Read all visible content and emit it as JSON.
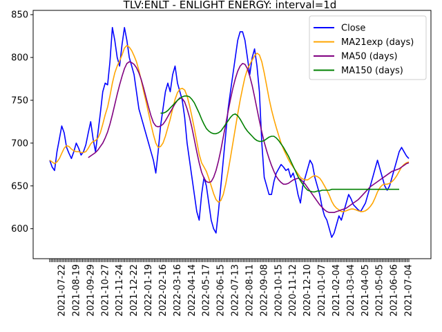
{
  "chart_data": {
    "type": "line",
    "title": "TLV:ENLT - ENLIGHT ENERGY: interval=1d",
    "xlabel": "",
    "ylabel": "",
    "ylim": [
      565,
      855
    ],
    "yticks": [
      600,
      650,
      700,
      750,
      800,
      850
    ],
    "grid": false,
    "legend_position": "top-right",
    "x_tick_labels": [
      "2021-07-22",
      "2021-08-19",
      "2021-09-29",
      "2021-10-27",
      "2021-11-24",
      "2021-12-22",
      "2022-01-19",
      "2022-02-16",
      "2022-03-16",
      "2022-04-14",
      "2022-05-17",
      "2022-06-15",
      "2022-07-13",
      "2022-08-11",
      "2022-09-08",
      "2020-10-15",
      "2020-11-12",
      "2020-12-10",
      "2021-01-07",
      "2021-02-04",
      "2021-03-04",
      "2021-04-05",
      "2021-05-05",
      "2021-06-06",
      "2021-07-04"
    ],
    "series": [
      {
        "name": "Close",
        "color": "#0000ff",
        "values": [
          680,
          672,
          668,
          690,
          705,
          720,
          712,
          695,
          688,
          682,
          690,
          700,
          694,
          686,
          690,
          698,
          712,
          725,
          705,
          690,
          712,
          735,
          760,
          770,
          768,
          795,
          835,
          820,
          800,
          790,
          815,
          835,
          820,
          800,
          790,
          780,
          760,
          740,
          730,
          720,
          710,
          700,
          690,
          680,
          665,
          690,
          720,
          740,
          760,
          770,
          760,
          780,
          790,
          770,
          760,
          750,
          730,
          700,
          680,
          660,
          640,
          620,
          610,
          640,
          660,
          650,
          630,
          610,
          600,
          595,
          620,
          650,
          680,
          710,
          740,
          760,
          780,
          800,
          820,
          830,
          830,
          820,
          800,
          780,
          800,
          810,
          790,
          760,
          700,
          660,
          650,
          640,
          640,
          655,
          665,
          670,
          675,
          672,
          668,
          670,
          660,
          665,
          655,
          640,
          630,
          650,
          660,
          670,
          680,
          675,
          660,
          650,
          640,
          625,
          615,
          610,
          600,
          590,
          595,
          605,
          615,
          610,
          620,
          630,
          640,
          635,
          628,
          625,
          622,
          620,
          625,
          630,
          640,
          650,
          660,
          670,
          680,
          670,
          660,
          650,
          645,
          650,
          660,
          670,
          680,
          690,
          695,
          690,
          685,
          682
        ]
      },
      {
        "name": "MA21exp (days)",
        "color": "#ffa500",
        "values": [
          680,
          678,
          676,
          678,
          682,
          688,
          694,
          697,
          696,
          693,
          691,
          690,
          690,
          689,
          689,
          690,
          694,
          699,
          702,
          703,
          706,
          712,
          722,
          733,
          742,
          755,
          770,
          782,
          790,
          796,
          803,
          811,
          814,
          812,
          808,
          802,
          795,
          785,
          773,
          760,
          748,
          735,
          722,
          710,
          700,
          695,
          696,
          700,
          708,
          718,
          728,
          740,
          751,
          759,
          763,
          764,
          762,
          755,
          744,
          731,
          717,
          702,
          687,
          677,
          672,
          667,
          659,
          650,
          641,
          634,
          631,
          633,
          640,
          652,
          667,
          683,
          700,
          717,
          734,
          750,
          764,
          777,
          786,
          792,
          797,
          802,
          805,
          803,
          795,
          782,
          767,
          752,
          739,
          728,
          718,
          709,
          700,
          693,
          687,
          681,
          676,
          672,
          668,
          664,
          660,
          658,
          657,
          657,
          659,
          661,
          662,
          661,
          659,
          655,
          650,
          645,
          639,
          632,
          627,
          624,
          622,
          620,
          620,
          621,
          622,
          623,
          623,
          622,
          621,
          620,
          620,
          621,
          623,
          626,
          630,
          636,
          643,
          648,
          651,
          652,
          652,
          653,
          655,
          658,
          662,
          667,
          672,
          675,
          677,
          678
        ]
      },
      {
        "name": "MA50 (days)",
        "color": "#800080",
        "values": [
          null,
          null,
          null,
          null,
          null,
          null,
          null,
          null,
          null,
          null,
          null,
          null,
          null,
          null,
          null,
          null,
          683,
          685,
          687,
          689,
          692,
          696,
          700,
          706,
          713,
          722,
          733,
          745,
          757,
          768,
          778,
          787,
          793,
          795,
          794,
          792,
          788,
          782,
          774,
          764,
          753,
          742,
          732,
          724,
          720,
          719,
          720,
          722,
          726,
          731,
          736,
          741,
          746,
          750,
          753,
          752,
          748,
          740,
          730,
          718,
          704,
          690,
          677,
          666,
          659,
          655,
          654,
          655,
          660,
          668,
          679,
          692,
          707,
          722,
          737,
          751,
          764,
          775,
          784,
          790,
          793,
          792,
          787,
          778,
          767,
          754,
          740,
          726,
          713,
          701,
          691,
          682,
          674,
          667,
          661,
          657,
          654,
          652,
          652,
          653,
          655,
          657,
          658,
          659,
          658,
          655,
          652,
          648,
          644,
          640,
          636,
          632,
          628,
          625,
          622,
          620,
          619,
          619,
          619,
          620,
          621,
          622,
          623,
          624,
          626,
          628,
          630,
          632,
          634,
          637,
          640,
          643,
          646,
          649,
          651,
          653,
          655,
          657,
          659,
          661,
          663,
          665,
          667,
          668,
          669,
          670,
          672,
          674,
          676,
          677
        ]
      },
      {
        "name": "MA150 (days)",
        "color": "#008000",
        "values": [
          null,
          null,
          null,
          null,
          null,
          null,
          null,
          null,
          null,
          null,
          null,
          null,
          null,
          null,
          null,
          null,
          null,
          null,
          null,
          null,
          null,
          null,
          null,
          null,
          null,
          null,
          null,
          null,
          null,
          null,
          null,
          null,
          null,
          null,
          null,
          null,
          null,
          null,
          null,
          null,
          null,
          null,
          null,
          null,
          null,
          null,
          735,
          735,
          736,
          738,
          741,
          744,
          747,
          750,
          752,
          754,
          755,
          755,
          754,
          751,
          747,
          741,
          735,
          728,
          722,
          717,
          714,
          712,
          711,
          711,
          712,
          714,
          718,
          722,
          726,
          730,
          733,
          734,
          732,
          728,
          723,
          718,
          714,
          711,
          708,
          705,
          703,
          702,
          702,
          703,
          705,
          707,
          708,
          708,
          706,
          703,
          699,
          695,
          690,
          685,
          679,
          673,
          667,
          661,
          656,
          652,
          648,
          645,
          644,
          643,
          643,
          644,
          644,
          645,
          645,
          645,
          645,
          646,
          646,
          646,
          646,
          646,
          646,
          646,
          646,
          646,
          646,
          646,
          646,
          646,
          646,
          646,
          646,
          646,
          646,
          646,
          646,
          646,
          646,
          646,
          646,
          646,
          646,
          646,
          646,
          646
        ]
      }
    ]
  }
}
